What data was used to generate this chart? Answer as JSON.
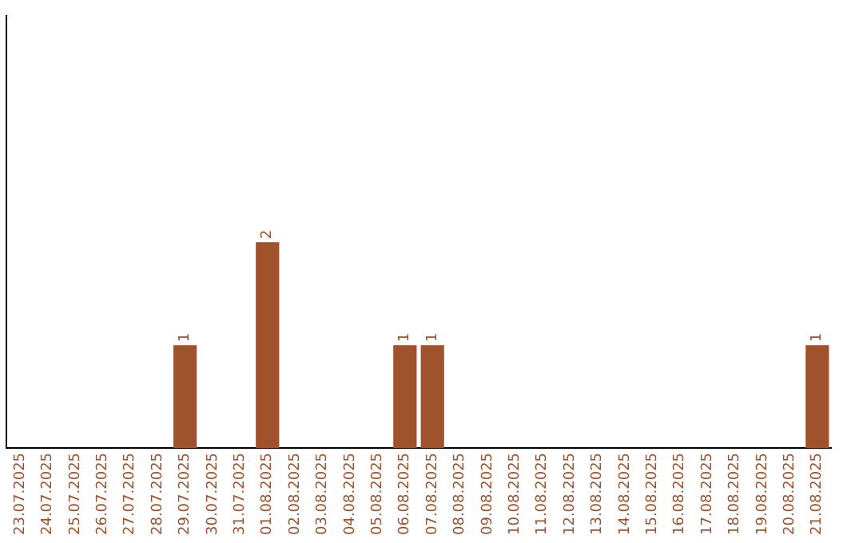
{
  "chart_data": {
    "type": "bar",
    "categories": [
      "23.07.2025",
      "24.07.2025",
      "25.07.2025",
      "26.07.2025",
      "27.07.2025",
      "28.07.2025",
      "29.07.2025",
      "30.07.2025",
      "31.07.2025",
      "01.08.2025",
      "02.08.2025",
      "03.08.2025",
      "04.08.2025",
      "05.08.2025",
      "06.08.2025",
      "07.08.2025",
      "08.08.2025",
      "09.08.2025",
      "10.08.2025",
      "11.08.2025",
      "12.08.2025",
      "13.08.2025",
      "14.08.2025",
      "15.08.2025",
      "16.08.2025",
      "17.08.2025",
      "18.08.2025",
      "19.08.2025",
      "20.08.2025",
      "21.08.2025"
    ],
    "values": [
      0,
      0,
      0,
      0,
      0,
      0,
      1,
      0,
      0,
      2,
      0,
      0,
      0,
      0,
      1,
      1,
      0,
      0,
      0,
      0,
      0,
      0,
      0,
      0,
      0,
      0,
      0,
      0,
      0,
      1
    ],
    "color": "#a0522d",
    "ylim": [
      0,
      4.2
    ],
    "value_labels": [
      null,
      null,
      null,
      null,
      null,
      null,
      "1",
      null,
      null,
      "2",
      null,
      null,
      null,
      null,
      "1",
      "1",
      null,
      null,
      null,
      null,
      null,
      null,
      null,
      null,
      null,
      null,
      null,
      null,
      null,
      "1"
    ],
    "tick_labels": "x",
    "grid": false,
    "legend": false
  }
}
